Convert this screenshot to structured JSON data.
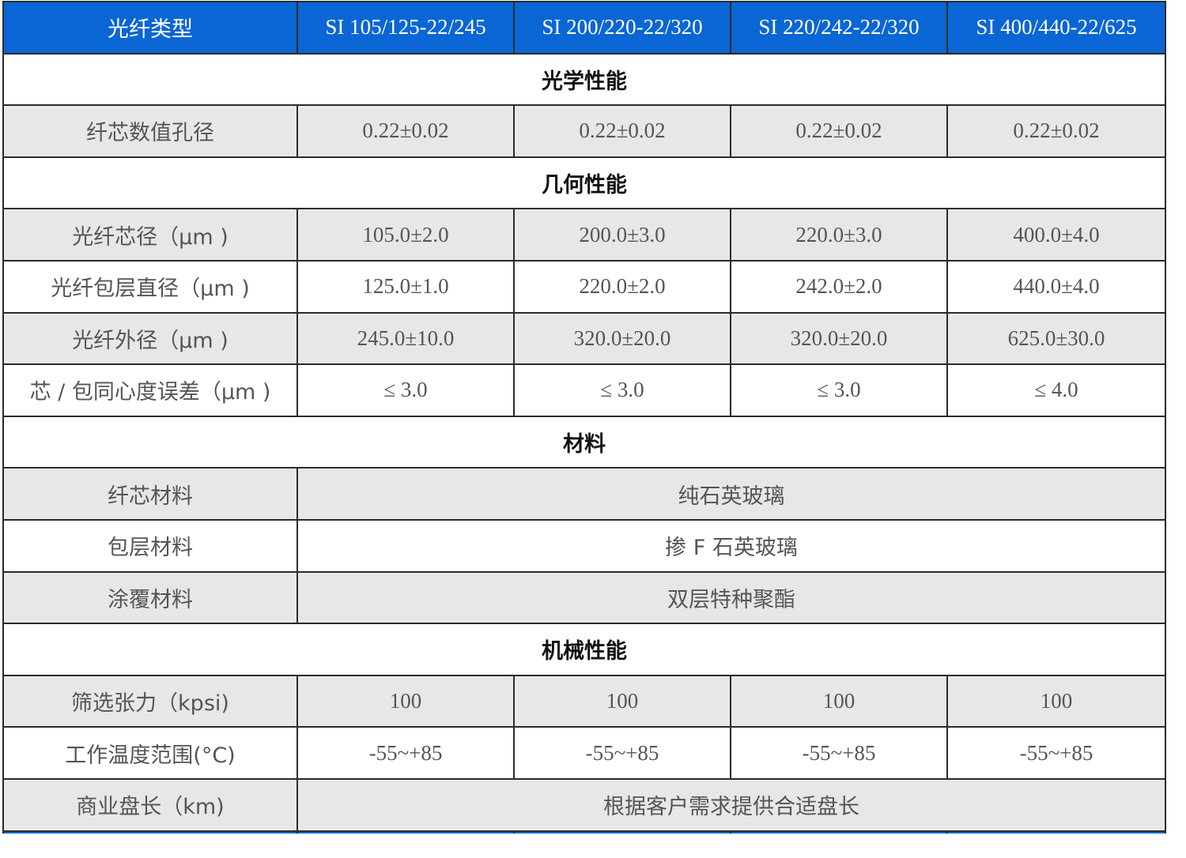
{
  "header": [
    "光纤类型",
    "SI 105/125-22/245",
    "SI 200/220-22/320",
    "SI 220/242-22/320",
    "SI 400/440-22/625"
  ],
  "sections": {
    "optical": "光学性能",
    "geometry": "几何性能",
    "material": "材料",
    "mechanical": "机械性能"
  },
  "rows": {
    "na": {
      "label": "纤芯数值孔径",
      "values": [
        "0.22±0.02",
        "0.22±0.02",
        "0.22±0.02",
        "0.22±0.02"
      ]
    },
    "core": {
      "label": "光纤芯径（μm )",
      "values": [
        "105.0±2.0",
        "200.0±3.0",
        "220.0±3.0",
        "400.0±4.0"
      ]
    },
    "clad": {
      "label": "光纤包层直径（μm )",
      "values": [
        "125.0±1.0",
        "220.0±2.0",
        "242.0±2.0",
        "440.0±4.0"
      ]
    },
    "outer": {
      "label": "光纤外径（μm )",
      "values": [
        "245.0±10.0",
        "320.0±20.0",
        "320.0±20.0",
        "625.0±30.0"
      ]
    },
    "concentricity": {
      "label": "芯 / 包同心度误差（μm )",
      "values": [
        "≤ 3.0",
        "≤ 3.0",
        "≤ 3.0",
        "≤ 4.0"
      ]
    },
    "core_material": {
      "label": "纤芯材料",
      "value": "纯石英玻璃"
    },
    "clad_material": {
      "label": "包层材料",
      "value": "掺 F 石英玻璃"
    },
    "coating_material": {
      "label": "涂覆材料",
      "value": "双层特种聚酯"
    },
    "proof": {
      "label": "筛选张力（kpsi)",
      "values": [
        "100",
        "100",
        "100",
        "100"
      ]
    },
    "temp": {
      "label": "工作温度范围(°C)",
      "values": [
        "-55~+85",
        "-55~+85",
        "-55~+85",
        "-55~+85"
      ]
    },
    "length": {
      "label": "商业盘长（km)",
      "value": "根据客户需求提供合适盘长"
    }
  },
  "colors": {
    "header_bg": "#0a66d4",
    "gray_row": "#e6e7e9",
    "border": "#2b2b2b"
  }
}
